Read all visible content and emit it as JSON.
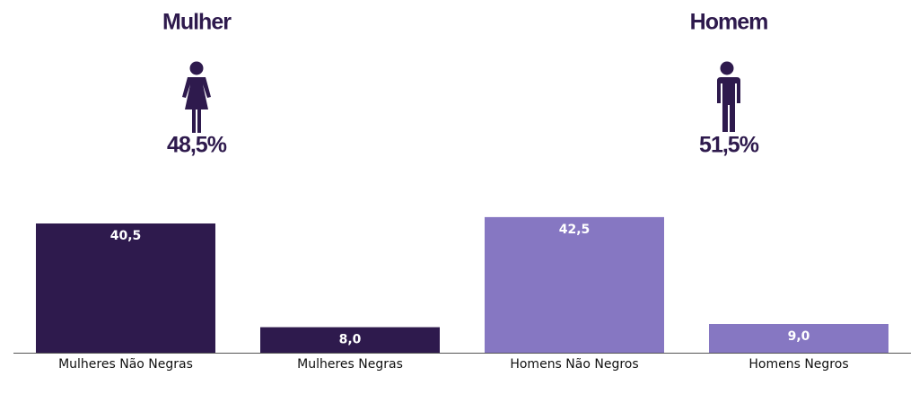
{
  "chart_data": {
    "type": "bar",
    "groups": [
      {
        "name": "Mulher",
        "share": 48.5,
        "share_label": "48,5%"
      },
      {
        "name": "Homem",
        "share": 51.5,
        "share_label": "51,5%"
      }
    ],
    "categories": [
      "Mulheres Não Negras",
      "Mulheres Negras",
      "Homens Não Negros",
      "Homens Negros"
    ],
    "values": [
      40.5,
      8.0,
      42.5,
      9.0
    ],
    "value_labels": [
      "40,5",
      "8,0",
      "42,5",
      "9,0"
    ],
    "colors": [
      "#2e1a4d",
      "#2e1a4d",
      "#8677c2",
      "#8677c2"
    ],
    "ylim": [
      0,
      45
    ]
  }
}
